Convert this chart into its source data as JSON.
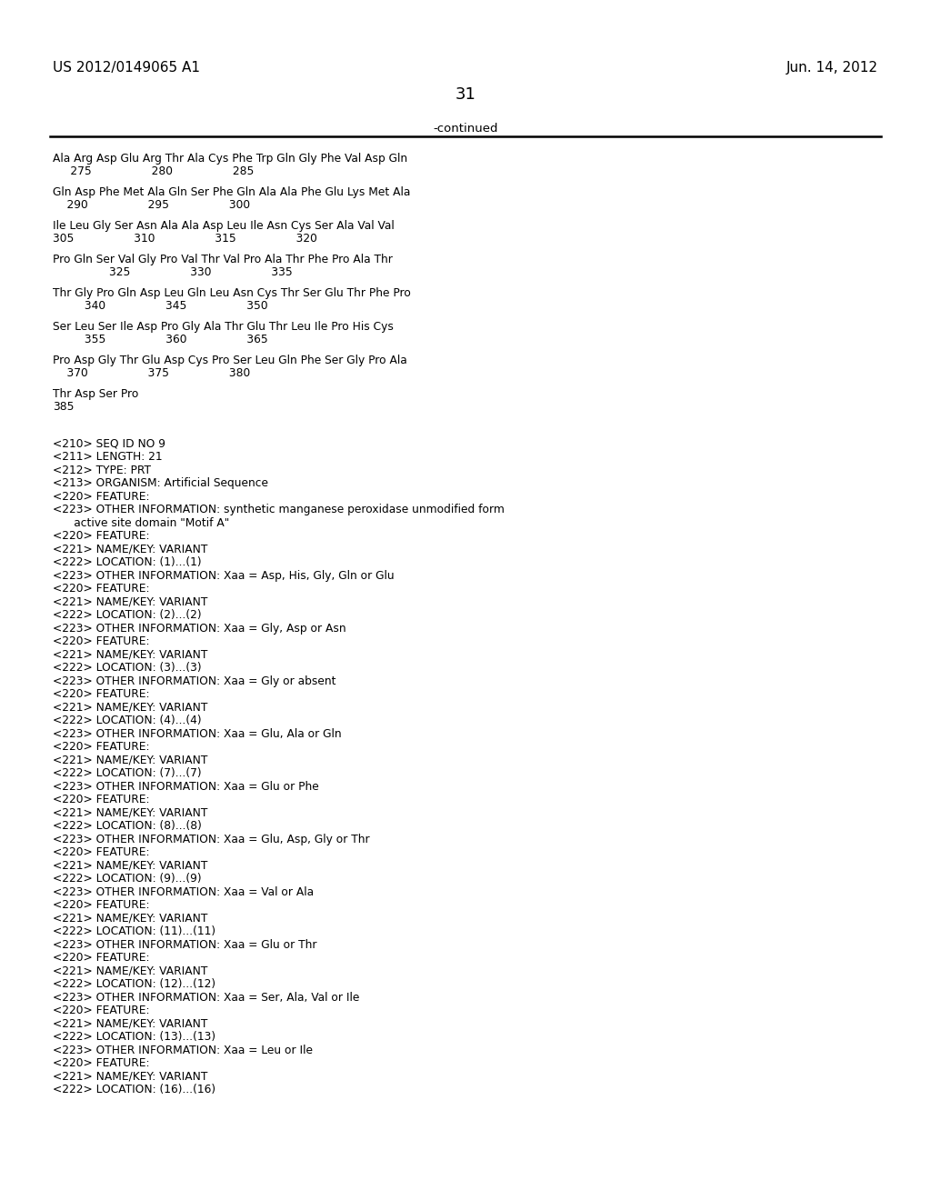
{
  "header_left": "US 2012/0149065 A1",
  "header_right": "Jun. 14, 2012",
  "page_number": "31",
  "continued_text": "-continued",
  "background_color": "#ffffff",
  "text_color": "#000000",
  "sequence_lines": [
    "Ala Arg Asp Glu Arg Thr Ala Cys Phe Trp Gln Gly Phe Val Asp Gln",
    "     275                 280                 285",
    "",
    "Gln Asp Phe Met Ala Gln Ser Phe Gln Ala Ala Phe Glu Lys Met Ala",
    "    290                 295                 300",
    "",
    "Ile Leu Gly Ser Asn Ala Ala Asp Leu Ile Asn Cys Ser Ala Val Val",
    "305                 310                 315                 320",
    "",
    "Pro Gln Ser Val Gly Pro Val Thr Val Pro Ala Thr Phe Pro Ala Thr",
    "                325                 330                 335",
    "",
    "Thr Gly Pro Gln Asp Leu Gln Leu Asn Cys Thr Ser Glu Thr Phe Pro",
    "         340                 345                 350",
    "",
    "Ser Leu Ser Ile Asp Pro Gly Ala Thr Glu Thr Leu Ile Pro His Cys",
    "         355                 360                 365",
    "",
    "Pro Asp Gly Thr Glu Asp Cys Pro Ser Leu Gln Phe Ser Gly Pro Ala",
    "    370                 375                 380",
    "",
    "Thr Asp Ser Pro",
    "385"
  ],
  "annotation_lines": [
    "",
    "",
    "<210> SEQ ID NO 9",
    "<211> LENGTH: 21",
    "<212> TYPE: PRT",
    "<213> ORGANISM: Artificial Sequence",
    "<220> FEATURE:",
    "<223> OTHER INFORMATION: synthetic manganese peroxidase unmodified form",
    "      active site domain \"Motif A\"",
    "<220> FEATURE:",
    "<221> NAME/KEY: VARIANT",
    "<222> LOCATION: (1)...(1)",
    "<223> OTHER INFORMATION: Xaa = Asp, His, Gly, Gln or Glu",
    "<220> FEATURE:",
    "<221> NAME/KEY: VARIANT",
    "<222> LOCATION: (2)...(2)",
    "<223> OTHER INFORMATION: Xaa = Gly, Asp or Asn",
    "<220> FEATURE:",
    "<221> NAME/KEY: VARIANT",
    "<222> LOCATION: (3)...(3)",
    "<223> OTHER INFORMATION: Xaa = Gly or absent",
    "<220> FEATURE:",
    "<221> NAME/KEY: VARIANT",
    "<222> LOCATION: (4)...(4)",
    "<223> OTHER INFORMATION: Xaa = Glu, Ala or Gln",
    "<220> FEATURE:",
    "<221> NAME/KEY: VARIANT",
    "<222> LOCATION: (7)...(7)",
    "<223> OTHER INFORMATION: Xaa = Glu or Phe",
    "<220> FEATURE:",
    "<221> NAME/KEY: VARIANT",
    "<222> LOCATION: (8)...(8)",
    "<223> OTHER INFORMATION: Xaa = Glu, Asp, Gly or Thr",
    "<220> FEATURE:",
    "<221> NAME/KEY: VARIANT",
    "<222> LOCATION: (9)...(9)",
    "<223> OTHER INFORMATION: Xaa = Val or Ala",
    "<220> FEATURE:",
    "<221> NAME/KEY: VARIANT",
    "<222> LOCATION: (11)...(11)",
    "<223> OTHER INFORMATION: Xaa = Glu or Thr",
    "<220> FEATURE:",
    "<221> NAME/KEY: VARIANT",
    "<222> LOCATION: (12)...(12)",
    "<223> OTHER INFORMATION: Xaa = Ser, Ala, Val or Ile",
    "<220> FEATURE:",
    "<221> NAME/KEY: VARIANT",
    "<222> LOCATION: (13)...(13)",
    "<223> OTHER INFORMATION: Xaa = Leu or Ile",
    "<220> FEATURE:",
    "<221> NAME/KEY: VARIANT",
    "<222> LOCATION: (16)...(16)"
  ]
}
